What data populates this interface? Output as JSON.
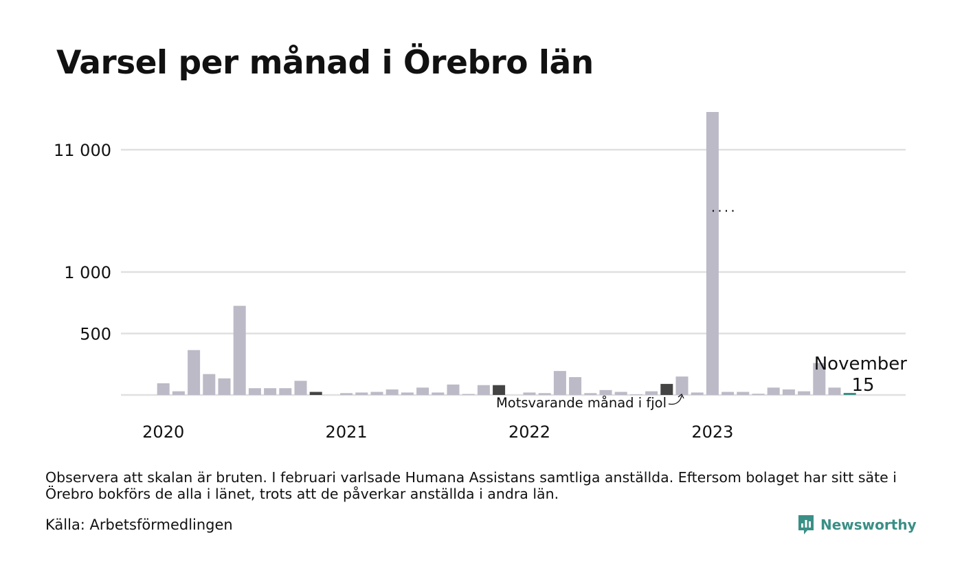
{
  "title": "Varsel per månad i Örebro län",
  "note": "Observera att skalan är bruten. I februari varlsade Humana Assistans samtliga anställda. Eftersom bolaget har sitt säte i Örebro bokförs de alla i länet, trots att de påverkar anställda i andra län.",
  "source": "Källa: Arbetsförmedlingen",
  "brand": "Newsworthy",
  "colors": {
    "bar": "#bbbac6",
    "highlight": "#444444",
    "current": "#3a8f86",
    "grid": "#e0e0e0"
  },
  "annotations": {
    "current_month": "November",
    "current_value": "15",
    "last_year": "Motsvarande månad i fjol"
  },
  "chart_data": {
    "type": "bar",
    "title": "Varsel per månad i Örebro län",
    "broken_axis": true,
    "y_ticks": [
      {
        "label": "11 000",
        "value": 11000
      },
      {
        "label": "1 000",
        "value": 1000
      },
      {
        "label": "500",
        "value": 500
      }
    ],
    "x_labels": [
      "2020",
      "2021",
      "2022",
      "2023"
    ],
    "grid": true,
    "start": "2020-01",
    "months": [
      "2020-01",
      "2020-02",
      "2020-03",
      "2020-04",
      "2020-05",
      "2020-06",
      "2020-07",
      "2020-08",
      "2020-09",
      "2020-10",
      "2020-11",
      "2020-12",
      "2021-01",
      "2021-02",
      "2021-03",
      "2021-04",
      "2021-05",
      "2021-06",
      "2021-07",
      "2021-08",
      "2021-09",
      "2021-10",
      "2021-11",
      "2021-12",
      "2022-01",
      "2022-02",
      "2022-03",
      "2022-04",
      "2022-05",
      "2022-06",
      "2022-07",
      "2022-08",
      "2022-09",
      "2022-10",
      "2022-11",
      "2022-12",
      "2023-01",
      "2023-02",
      "2023-03",
      "2023-04",
      "2023-05",
      "2023-06",
      "2023-07",
      "2023-08",
      "2023-09",
      "2023-10",
      "2023-11"
    ],
    "values": [
      0,
      95,
      30,
      365,
      170,
      135,
      725,
      55,
      55,
      55,
      115,
      25,
      0,
      15,
      20,
      25,
      45,
      20,
      60,
      20,
      85,
      8,
      80,
      80,
      0,
      20,
      15,
      195,
      145,
      15,
      40,
      25,
      5,
      30,
      90,
      150,
      20,
      11500,
      25,
      25,
      10,
      60,
      45,
      30,
      260,
      60,
      15
    ],
    "highlight_index": 34,
    "previous_year_highlights": [
      11,
      23
    ],
    "current_index": 46
  }
}
